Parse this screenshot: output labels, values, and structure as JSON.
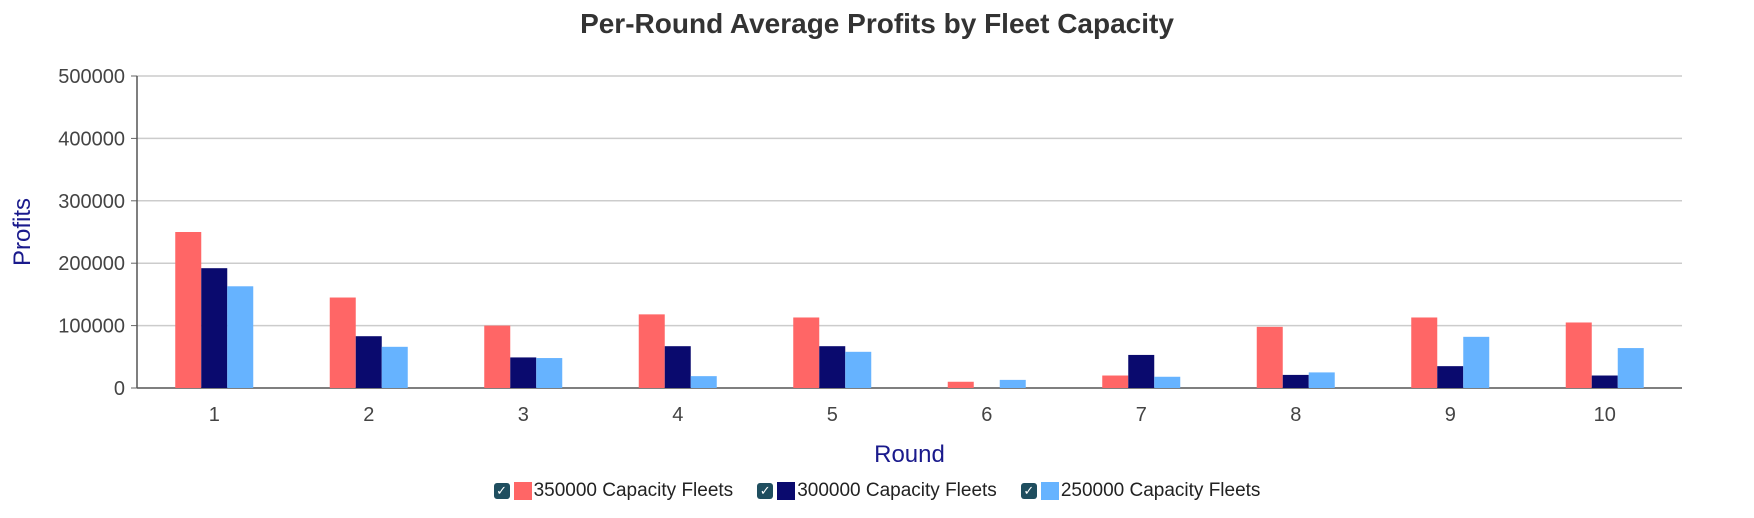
{
  "chart_data": {
    "type": "bar",
    "title": "Per-Round Average Profits by Fleet Capacity",
    "xlabel": "Round",
    "ylabel": "Profits",
    "categories": [
      "1",
      "2",
      "3",
      "4",
      "5",
      "6",
      "7",
      "8",
      "9",
      "10"
    ],
    "ylim": [
      0,
      500000
    ],
    "yticks": [
      "0",
      "100000",
      "200000",
      "300000",
      "400000",
      "500000"
    ],
    "grid": true,
    "legend_position": "bottom",
    "series": [
      {
        "name": "350000 Capacity Fleets",
        "color": "#ff6666",
        "values": [
          250000,
          145000,
          100000,
          118000,
          113000,
          10000,
          20000,
          98000,
          113000,
          105000
        ]
      },
      {
        "name": "300000 Capacity Fleets",
        "color": "#0a0a6e",
        "values": [
          192000,
          83000,
          49000,
          67000,
          67000,
          0,
          53000,
          21000,
          35000,
          20000
        ]
      },
      {
        "name": "250000 Capacity Fleets",
        "color": "#66b3ff",
        "values": [
          163000,
          66000,
          48000,
          19000,
          58000,
          13000,
          18000,
          25000,
          82000,
          64000
        ]
      }
    ]
  }
}
